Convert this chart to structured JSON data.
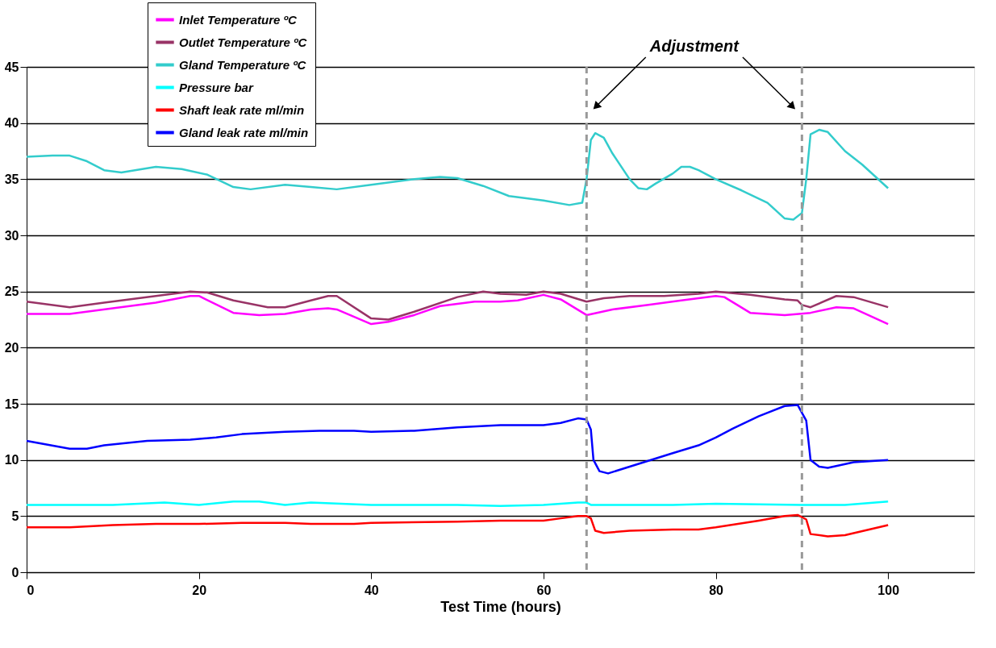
{
  "chart_data": {
    "type": "line",
    "xlabel": "Test Time (hours)",
    "xlim": [
      0,
      110
    ],
    "xticks": [
      0,
      20,
      40,
      60,
      80,
      100
    ],
    "ylim": [
      0,
      45
    ],
    "yticks": [
      0,
      5,
      10,
      15,
      20,
      25,
      30,
      35,
      40,
      45
    ],
    "grid": "y",
    "legend": "top left",
    "line_style": "solid",
    "marker": "none",
    "annotations": [
      "Adjustment"
    ],
    "ref_lines": [
      {
        "axis": "x",
        "value": 65,
        "color": "#999999",
        "line_style": "dashed"
      },
      {
        "axis": "x",
        "value": 90,
        "color": "#999999",
        "line_style": "dashed"
      }
    ],
    "series": [
      {
        "name": "Inlet Temperature ºC",
        "color": "#ff00ff",
        "x": [
          0,
          5,
          10,
          15,
          19,
          20,
          24,
          27,
          30,
          33,
          35,
          36,
          40,
          42,
          45,
          48,
          52,
          55,
          57,
          60,
          62,
          65,
          68,
          72,
          76,
          80,
          81,
          84,
          88,
          91,
          94,
          96,
          100
        ],
        "values": [
          23,
          23,
          23.5,
          24,
          24.6,
          24.6,
          23.1,
          22.9,
          23,
          23.4,
          23.5,
          23.4,
          22.1,
          22.3,
          22.9,
          23.7,
          24.1,
          24.1,
          24.2,
          24.7,
          24.3,
          22.9,
          23.4,
          23.8,
          24.2,
          24.6,
          24.5,
          23.1,
          22.9,
          23.1,
          23.6,
          23.5,
          22.1
        ]
      },
      {
        "name": "Outlet Temperature ºC",
        "color": "#993366",
        "x": [
          0,
          5,
          9,
          15,
          19,
          21,
          24,
          28,
          30,
          33,
          35,
          36,
          40,
          42,
          45,
          50,
          53,
          55,
          58,
          60,
          62,
          65,
          67,
          70,
          74,
          78,
          80,
          84,
          88,
          89.5,
          90,
          91,
          94,
          96,
          100
        ],
        "values": [
          24.1,
          23.6,
          24,
          24.6,
          25,
          24.9,
          24.2,
          23.6,
          23.6,
          24.2,
          24.6,
          24.6,
          22.6,
          22.5,
          23.2,
          24.5,
          25,
          24.8,
          24.7,
          25,
          24.8,
          24.1,
          24.4,
          24.6,
          24.6,
          24.8,
          25,
          24.7,
          24.3,
          24.2,
          23.8,
          23.6,
          24.6,
          24.5,
          23.6
        ]
      },
      {
        "name": "Gland Temperature ºC",
        "color": "#33cccc",
        "x": [
          0,
          3,
          5,
          7,
          9,
          11,
          15,
          18,
          21,
          24,
          26,
          30,
          33,
          36,
          40,
          45,
          48,
          50,
          53,
          56,
          60,
          63,
          64.5,
          65,
          65.5,
          66,
          67,
          68,
          70,
          71,
          72,
          73,
          75,
          76,
          77,
          78,
          80,
          83,
          86,
          88,
          89,
          90,
          90.5,
          91,
          92,
          93,
          95,
          97,
          100
        ],
        "values": [
          37,
          37.1,
          37.1,
          36.6,
          35.8,
          35.6,
          36.1,
          35.9,
          35.4,
          34.3,
          34.1,
          34.5,
          34.3,
          34.1,
          34.5,
          35,
          35.2,
          35.1,
          34.4,
          33.5,
          33.1,
          32.7,
          32.9,
          35,
          38.5,
          39.1,
          38.7,
          37.3,
          35,
          34.2,
          34.1,
          34.6,
          35.5,
          36.1,
          36.1,
          35.8,
          35,
          34,
          32.9,
          31.5,
          31.4,
          32,
          35,
          39,
          39.4,
          39.2,
          37.5,
          36.3,
          34.2
        ]
      },
      {
        "name": "Pressure bar",
        "color": "#00ffff",
        "x": [
          0,
          5,
          10,
          16,
          20,
          24,
          27,
          30,
          33,
          40,
          50,
          55,
          60,
          64,
          65,
          65.5,
          75,
          80,
          90,
          95,
          100
        ],
        "values": [
          6,
          6,
          6,
          6.2,
          6,
          6.3,
          6.3,
          6,
          6.2,
          6,
          6,
          5.9,
          6,
          6.2,
          6.2,
          6,
          6,
          6.1,
          6,
          6,
          6.3
        ]
      },
      {
        "name": "Shaft leak rate ml/min",
        "color": "#ff0000",
        "x": [
          0,
          5,
          10,
          15,
          20,
          25,
          30,
          33,
          38,
          40,
          50,
          55,
          60,
          62,
          64,
          65,
          65.5,
          66,
          67,
          70,
          75,
          78,
          80,
          85,
          88,
          89.5,
          90.5,
          91,
          93,
          95,
          100
        ],
        "values": [
          4,
          4,
          4.2,
          4.3,
          4.3,
          4.4,
          4.4,
          4.3,
          4.3,
          4.4,
          4.5,
          4.6,
          4.6,
          4.8,
          5,
          5,
          4.8,
          3.7,
          3.5,
          3.7,
          3.8,
          3.8,
          4,
          4.6,
          5,
          5.1,
          4.7,
          3.4,
          3.2,
          3.3,
          4.2
        ]
      },
      {
        "name": "Gland leak rate ml/min",
        "color": "#0000ff",
        "x": [
          0,
          5,
          7,
          9,
          14,
          19,
          22,
          25,
          30,
          34,
          38,
          40,
          45,
          50,
          55,
          60,
          62,
          64,
          65,
          65.5,
          65.8,
          66.5,
          67.5,
          70,
          75,
          78,
          80,
          82,
          85,
          88,
          89.5,
          90.5,
          91,
          92,
          93,
          96,
          100
        ],
        "values": [
          11.7,
          11,
          11,
          11.3,
          11.7,
          11.8,
          12,
          12.3,
          12.5,
          12.6,
          12.6,
          12.5,
          12.6,
          12.9,
          13.1,
          13.1,
          13.3,
          13.7,
          13.6,
          12.7,
          10,
          9,
          8.8,
          9.4,
          10.6,
          11.3,
          12,
          12.8,
          13.9,
          14.8,
          14.9,
          13.5,
          10,
          9.4,
          9.3,
          9.8,
          10
        ]
      }
    ]
  }
}
